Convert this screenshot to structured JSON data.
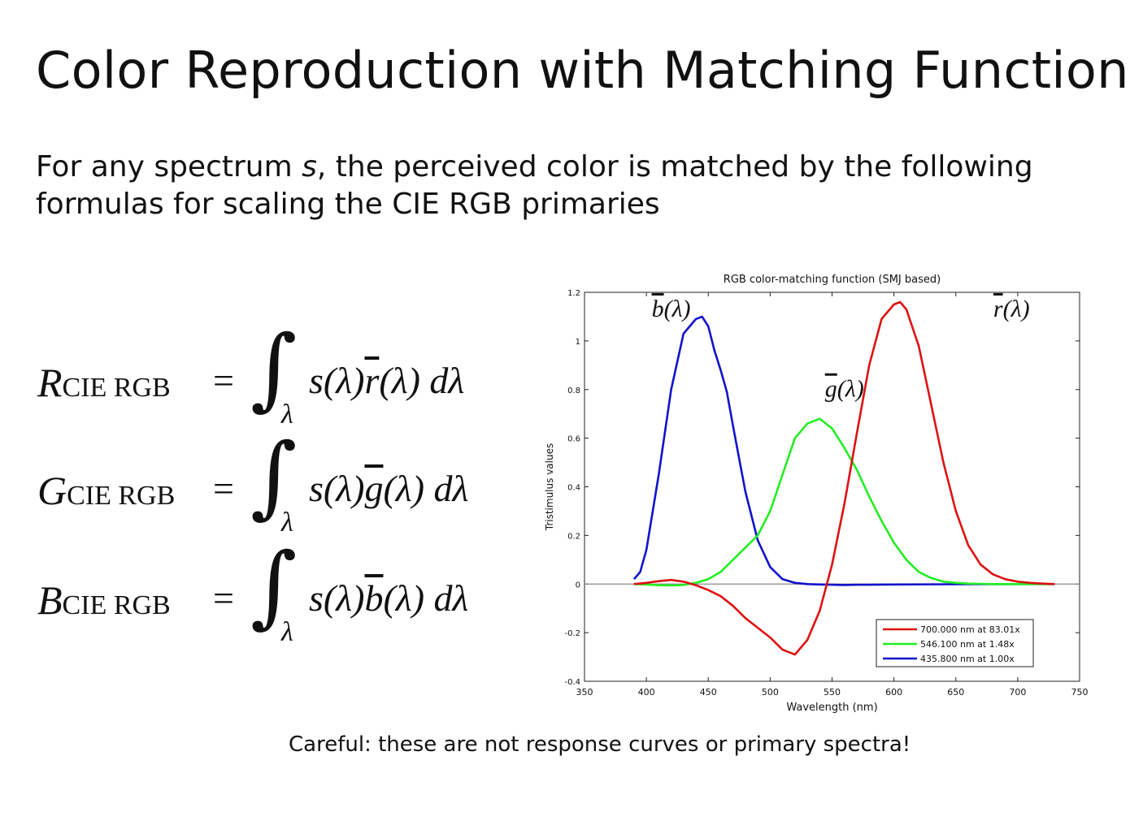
{
  "slide": {
    "title": "Color Reproduction with Matching Functions",
    "intro_before": "For any spectrum ",
    "intro_var": "s",
    "intro_after": ", the perceived color is matched by the following formulas for scaling the CIE RGB primaries",
    "caption": "Careful: these are not response curves or primary spectra!"
  },
  "formulas": [
    {
      "var": "R",
      "sub": "CIE RGB",
      "eq": "=",
      "int": "∫",
      "int_sub": "λ",
      "integrand_pre": "s(λ)",
      "fn": "r",
      "integrand_post": "(λ) dλ"
    },
    {
      "var": "G",
      "sub": "CIE RGB",
      "eq": "=",
      "int": "∫",
      "int_sub": "λ",
      "integrand_pre": "s(λ)",
      "fn": "g",
      "integrand_post": "(λ) dλ"
    },
    {
      "var": "B",
      "sub": "CIE RGB",
      "eq": "=",
      "int": "∫",
      "int_sub": "λ",
      "integrand_pre": "s(λ)",
      "fn": "b",
      "integrand_post": "(λ) dλ"
    }
  ],
  "chart_data": {
    "type": "line",
    "title": "RGB color-matching function (SMJ based)",
    "xlabel": "Wavelength (nm)",
    "ylabel": "Tristimulus values",
    "xlim": [
      350,
      750
    ],
    "ylim": [
      -0.4,
      1.2
    ],
    "xticks": [
      350,
      400,
      450,
      500,
      550,
      600,
      650,
      700,
      750
    ],
    "yticks": [
      -0.4,
      -0.2,
      0,
      0.2,
      0.4,
      0.6,
      0.8,
      1,
      1.2
    ],
    "ytick_labels": [
      "-0.4",
      "-0.2",
      "0",
      "0.2",
      "0.4",
      "0.6",
      "0.8",
      "1",
      "1.2"
    ],
    "grid": false,
    "zero_line": true,
    "legend_position": "bottom-right",
    "annotations": [
      {
        "fn": "b",
        "text": "(λ)",
        "x": 420,
        "y": 1.1
      },
      {
        "fn": "g",
        "text": "(λ)",
        "x": 560,
        "y": 0.77
      },
      {
        "fn": "r",
        "text": "(λ)",
        "x": 695,
        "y": 1.1
      }
    ],
    "series": [
      {
        "name": "700.000 nm at 83.01x",
        "color": "#dd1111",
        "x": [
          390,
          400,
          410,
          420,
          430,
          440,
          450,
          460,
          470,
          480,
          490,
          500,
          510,
          520,
          530,
          540,
          550,
          560,
          570,
          580,
          590,
          600,
          605,
          610,
          620,
          630,
          640,
          650,
          660,
          670,
          680,
          690,
          700,
          710,
          720,
          730
        ],
        "y": [
          0,
          0.005,
          0.012,
          0.017,
          0.01,
          -0.005,
          -0.025,
          -0.05,
          -0.09,
          -0.14,
          -0.18,
          -0.22,
          -0.27,
          -0.29,
          -0.23,
          -0.11,
          0.08,
          0.33,
          0.62,
          0.9,
          1.09,
          1.15,
          1.16,
          1.13,
          0.98,
          0.74,
          0.5,
          0.3,
          0.16,
          0.08,
          0.04,
          0.02,
          0.01,
          0.005,
          0.002,
          0
        ]
      },
      {
        "name": "546.100 nm at  1.48x",
        "color": "#22ee22",
        "x": [
          390,
          400,
          410,
          420,
          430,
          440,
          450,
          460,
          470,
          480,
          490,
          500,
          510,
          520,
          530,
          540,
          550,
          560,
          570,
          580,
          590,
          600,
          610,
          620,
          630,
          640,
          650,
          660,
          670,
          680,
          690,
          700,
          710,
          720,
          730
        ],
        "y": [
          0,
          -0.002,
          -0.005,
          -0.006,
          -0.004,
          0.005,
          0.02,
          0.05,
          0.1,
          0.15,
          0.2,
          0.3,
          0.45,
          0.6,
          0.66,
          0.68,
          0.64,
          0.56,
          0.47,
          0.36,
          0.26,
          0.17,
          0.1,
          0.05,
          0.025,
          0.01,
          0.005,
          0.002,
          0.001,
          0,
          0,
          0,
          0,
          0,
          0
        ]
      },
      {
        "name": "435.800 nm at  1.00x",
        "color": "#1111cc",
        "x": [
          390,
          395,
          400,
          410,
          420,
          430,
          440,
          445,
          450,
          455,
          460,
          465,
          470,
          480,
          490,
          500,
          510,
          520,
          530,
          540,
          550,
          560,
          570,
          580,
          600,
          650,
          700,
          730
        ],
        "y": [
          0.02,
          0.05,
          0.14,
          0.45,
          0.8,
          1.03,
          1.09,
          1.1,
          1.06,
          0.96,
          0.88,
          0.79,
          0.65,
          0.38,
          0.18,
          0.07,
          0.02,
          0.005,
          0,
          -0.002,
          -0.003,
          -0.004,
          -0.003,
          -0.003,
          -0.002,
          -0.001,
          0,
          0
        ]
      }
    ]
  }
}
